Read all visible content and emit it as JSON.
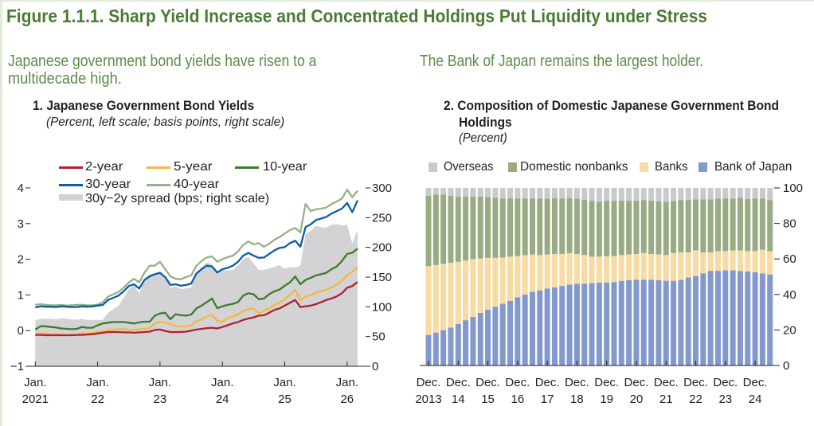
{
  "colors": {
    "title": "#4a7b33",
    "lead_text": "#5c8b48",
    "text": "#231f20",
    "frame": "#e2eadb"
  },
  "figure": {
    "title": "Figure 1.1.1. Sharp Yield Increase and Concentrated Holdings Put Liquidity under Stress",
    "left_lead_lines": [
      "Japanese government bond yields have risen to a",
      "multidecade high."
    ],
    "right_lead": "The Bank of Japan remains the largest holder."
  },
  "chart_data": [
    {
      "type": "line",
      "title": "1. Japanese Government Bond Yields",
      "subtitle": "(Percent, left scale; basis points, right scale)",
      "xlabel": "",
      "ylabel_left": "Percent",
      "ylabel_right": "Basis points",
      "legend": "top-left",
      "grid": false,
      "x": [
        "2021-01",
        "2021-02",
        "2021-03",
        "2021-04",
        "2021-05",
        "2021-06",
        "2021-07",
        "2021-08",
        "2021-09",
        "2021-10",
        "2021-11",
        "2021-12",
        "2022-01",
        "2022-02",
        "2022-03",
        "2022-04",
        "2022-05",
        "2022-06",
        "2022-07",
        "2022-08",
        "2022-09",
        "2022-10",
        "2022-11",
        "2022-12",
        "2023-01",
        "2023-02",
        "2023-03",
        "2023-04",
        "2023-05",
        "2023-06",
        "2023-07",
        "2023-08",
        "2023-09",
        "2023-10",
        "2023-11",
        "2023-12",
        "2024-01",
        "2024-02",
        "2024-03",
        "2024-04",
        "2024-05",
        "2024-06",
        "2024-07",
        "2024-08",
        "2024-09",
        "2024-10",
        "2024-11",
        "2024-12",
        "2025-01",
        "2025-02",
        "2025-03",
        "2025-04",
        "2025-05",
        "2025-06",
        "2025-07",
        "2025-08",
        "2025-09",
        "2025-10",
        "2025-11",
        "2025-12",
        "2026-01",
        "2026-02",
        "2026-03"
      ],
      "x_ticks": [
        {
          "index": 0,
          "label1": "Jan.",
          "label2": "2021"
        },
        {
          "index": 12,
          "label1": "Jan.",
          "label2": "22"
        },
        {
          "index": 24,
          "label1": "Jan.",
          "label2": "23"
        },
        {
          "index": 36,
          "label1": "Jan.",
          "label2": "24"
        },
        {
          "index": 48,
          "label1": "Jan.",
          "label2": "25"
        },
        {
          "index": 60,
          "label1": "Jan.",
          "label2": "26"
        }
      ],
      "ylim_left": [
        -1,
        4
      ],
      "yticks_left": [
        -1,
        0,
        1,
        2,
        3,
        4
      ],
      "ytick_labels_left": [
        "−1",
        "0",
        "1",
        "2",
        "3",
        "4"
      ],
      "ylim_right": [
        0,
        300
      ],
      "yticks_right": [
        0,
        50,
        100,
        150,
        200,
        250,
        300
      ],
      "ytick_labels_right": [
        "0",
        "50",
        "100",
        "150",
        "200",
        "250",
        "300"
      ],
      "series": [
        {
          "name": "2-year",
          "axis": "left",
          "kind": "line",
          "color": "#b3202e",
          "values": [
            -0.12,
            -0.12,
            -0.13,
            -0.13,
            -0.13,
            -0.13,
            -0.13,
            -0.13,
            -0.12,
            -0.12,
            -0.11,
            -0.1,
            -0.08,
            -0.06,
            -0.04,
            -0.04,
            -0.04,
            -0.05,
            -0.05,
            -0.06,
            -0.05,
            -0.04,
            -0.03,
            0.02,
            0.03,
            -0.01,
            -0.04,
            -0.04,
            -0.04,
            -0.03,
            0.0,
            0.03,
            0.05,
            0.07,
            0.08,
            0.06,
            0.1,
            0.15,
            0.2,
            0.24,
            0.3,
            0.34,
            0.37,
            0.42,
            0.43,
            0.5,
            0.58,
            0.62,
            0.7,
            0.78,
            0.86,
            0.66,
            0.68,
            0.7,
            0.74,
            0.8,
            0.86,
            0.9,
            0.96,
            1.05,
            1.2,
            1.25,
            1.36
          ]
        },
        {
          "name": "5-year",
          "axis": "left",
          "kind": "line",
          "color": "#f5b840",
          "values": [
            -0.09,
            -0.08,
            -0.08,
            -0.1,
            -0.1,
            -0.11,
            -0.12,
            -0.12,
            -0.11,
            -0.08,
            -0.08,
            -0.07,
            -0.04,
            -0.02,
            0.0,
            0.02,
            0.04,
            0.04,
            0.03,
            0.02,
            0.04,
            0.05,
            0.08,
            0.2,
            0.24,
            0.22,
            0.18,
            0.13,
            0.11,
            0.12,
            0.15,
            0.26,
            0.32,
            0.4,
            0.44,
            0.28,
            0.25,
            0.35,
            0.4,
            0.45,
            0.55,
            0.6,
            0.62,
            0.48,
            0.56,
            0.62,
            0.72,
            0.78,
            0.88,
            1.0,
            1.15,
            0.85,
            0.95,
            1.0,
            1.06,
            1.1,
            1.15,
            1.2,
            1.3,
            1.4,
            1.55,
            1.65,
            1.78
          ]
        },
        {
          "name": "10-year",
          "axis": "left",
          "kind": "line",
          "color": "#3f7a2e",
          "values": [
            0.03,
            0.12,
            0.12,
            0.1,
            0.09,
            0.06,
            0.05,
            0.04,
            0.05,
            0.1,
            0.08,
            0.08,
            0.15,
            0.2,
            0.22,
            0.24,
            0.24,
            0.24,
            0.22,
            0.2,
            0.23,
            0.25,
            0.25,
            0.42,
            0.48,
            0.5,
            0.32,
            0.46,
            0.43,
            0.42,
            0.45,
            0.62,
            0.7,
            0.8,
            0.9,
            0.63,
            0.68,
            0.72,
            0.75,
            0.8,
            0.98,
            1.05,
            1.02,
            0.88,
            0.9,
            1.02,
            1.1,
            1.15,
            1.26,
            1.35,
            1.52,
            1.3,
            1.42,
            1.48,
            1.55,
            1.58,
            1.62,
            1.72,
            1.8,
            1.95,
            2.15,
            2.18,
            2.3
          ]
        },
        {
          "name": "30-year",
          "axis": "left",
          "kind": "line",
          "color": "#0b5cab",
          "values": [
            0.65,
            0.68,
            0.67,
            0.67,
            0.66,
            0.68,
            0.67,
            0.66,
            0.66,
            0.68,
            0.67,
            0.68,
            0.7,
            0.72,
            0.86,
            0.92,
            0.98,
            1.1,
            1.25,
            1.3,
            1.18,
            1.42,
            1.52,
            1.58,
            1.62,
            1.5,
            1.28,
            1.3,
            1.26,
            1.28,
            1.32,
            1.6,
            1.72,
            1.82,
            1.8,
            1.63,
            1.72,
            1.76,
            1.82,
            1.93,
            2.1,
            2.18,
            2.1,
            2.04,
            2.05,
            2.15,
            2.25,
            2.32,
            2.34,
            2.45,
            2.52,
            2.35,
            2.9,
            2.98,
            3.1,
            3.14,
            3.19,
            3.28,
            3.35,
            3.42,
            3.58,
            3.32,
            3.65
          ]
        },
        {
          "name": "40-year",
          "axis": "left",
          "kind": "line",
          "color": "#97af86",
          "values": [
            0.72,
            0.74,
            0.72,
            0.71,
            0.71,
            0.72,
            0.7,
            0.71,
            0.72,
            0.72,
            0.71,
            0.71,
            0.73,
            0.8,
            0.95,
            1.02,
            1.08,
            1.2,
            1.35,
            1.45,
            1.35,
            1.62,
            1.82,
            1.82,
            1.93,
            1.72,
            1.52,
            1.45,
            1.44,
            1.5,
            1.55,
            1.82,
            1.95,
            2.05,
            2.08,
            1.93,
            2.0,
            2.06,
            2.1,
            2.22,
            2.4,
            2.5,
            2.42,
            2.45,
            2.35,
            2.43,
            2.55,
            2.62,
            2.72,
            2.82,
            2.88,
            2.75,
            3.55,
            3.35,
            3.4,
            3.42,
            3.45,
            3.55,
            3.62,
            3.7,
            3.95,
            3.74,
            3.92
          ]
        },
        {
          "name": "30y−2y spread (bps; right scale)",
          "axis": "right",
          "kind": "area",
          "color": "#d3d3d5",
          "values": [
            77,
            80,
            80,
            80,
            79,
            81,
            80,
            79,
            78,
            80,
            78,
            78,
            78,
            78,
            90,
            96,
            102,
            115,
            130,
            136,
            123,
            146,
            155,
            156,
            159,
            151,
            132,
            134,
            130,
            131,
            132,
            157,
            167,
            175,
            172,
            157,
            162,
            161,
            162,
            169,
            180,
            184,
            173,
            162,
            162,
            165,
            167,
            170,
            164,
            167,
            166,
            169,
            222,
            228,
            236,
            234,
            233,
            238,
            239,
            237,
            238,
            207,
            229
          ]
        }
      ]
    },
    {
      "type": "bar",
      "stacked": true,
      "title_lines": [
        "2. Composition of Domestic Japanese Government Bond",
        "Holdings"
      ],
      "subtitle": "(Percent)",
      "xlabel": "",
      "ylabel": "Percent",
      "legend": "top",
      "grid": false,
      "ylim": [
        0,
        100
      ],
      "yticks": [
        0,
        20,
        40,
        60,
        80,
        100
      ],
      "ytick_labels": [
        "0",
        "20",
        "40",
        "60",
        "80",
        "100"
      ],
      "categories": [
        "2013:Q4",
        "2014:Q1",
        "2014:Q2",
        "2014:Q3",
        "2014:Q4",
        "2015:Q1",
        "2015:Q2",
        "2015:Q3",
        "2015:Q4",
        "2016:Q1",
        "2016:Q2",
        "2016:Q3",
        "2016:Q4",
        "2017:Q1",
        "2017:Q2",
        "2017:Q3",
        "2017:Q4",
        "2018:Q1",
        "2018:Q2",
        "2018:Q3",
        "2018:Q4",
        "2019:Q1",
        "2019:Q2",
        "2019:Q3",
        "2019:Q4",
        "2020:Q1",
        "2020:Q2",
        "2020:Q3",
        "2020:Q4",
        "2021:Q1",
        "2021:Q2",
        "2021:Q3",
        "2021:Q4",
        "2022:Q1",
        "2022:Q2",
        "2022:Q3",
        "2022:Q4",
        "2023:Q1",
        "2023:Q2",
        "2023:Q3",
        "2023:Q4",
        "2024:Q1",
        "2024:Q2",
        "2024:Q3",
        "2024:Q4",
        "2025:Q1",
        "2025:Q2"
      ],
      "x_ticks": [
        {
          "index": 0,
          "label1": "Dec.",
          "label2": "2013"
        },
        {
          "index": 4,
          "label1": "Dec.",
          "label2": "14"
        },
        {
          "index": 8,
          "label1": "Dec.",
          "label2": "15"
        },
        {
          "index": 12,
          "label1": "Dec.",
          "label2": "16"
        },
        {
          "index": 16,
          "label1": "Dec.",
          "label2": "17"
        },
        {
          "index": 20,
          "label1": "Dec.",
          "label2": "18"
        },
        {
          "index": 24,
          "label1": "Dec.",
          "label2": "19"
        },
        {
          "index": 28,
          "label1": "Dec.",
          "label2": "20"
        },
        {
          "index": 32,
          "label1": "Dec.",
          "label2": "21"
        },
        {
          "index": 36,
          "label1": "Dec.",
          "label2": "22"
        },
        {
          "index": 40,
          "label1": "Dec.",
          "label2": "23"
        },
        {
          "index": 44,
          "label1": "Dec.",
          "label2": "24"
        }
      ],
      "series": [
        {
          "name": "Overseas",
          "color": "#c8cacd",
          "values": [
            4.4,
            3.7,
            3.7,
            4.4,
            4.9,
            4.9,
            4.9,
            4.9,
            5.2,
            5.6,
            5.9,
            5.9,
            5.9,
            5.9,
            5.9,
            6.0,
            6.0,
            5.8,
            6.0,
            5.8,
            6.0,
            6.7,
            7.2,
            7.8,
            7.4,
            7.4,
            7.2,
            7.2,
            7.2,
            6.8,
            7.2,
            7.6,
            7.8,
            7.4,
            6.8,
            6.8,
            6.4,
            6.4,
            6.5,
            5.9,
            5.9,
            6.0,
            5.6,
            6.2,
            5.9,
            6.0,
            6.8
          ]
        },
        {
          "name": "Domestic nonbanks",
          "color": "#9aab84",
          "values": [
            39.7,
            39.7,
            39.0,
            37.8,
            36.7,
            36.0,
            35.2,
            34.8,
            34.2,
            33.8,
            33.3,
            32.8,
            32.5,
            32.0,
            31.6,
            31.8,
            31.5,
            31.4,
            31.2,
            30.9,
            31.2,
            31.1,
            31.5,
            30.9,
            31.0,
            31.0,
            30.6,
            30.3,
            30.0,
            29.9,
            30.0,
            29.9,
            30.0,
            29.3,
            29.5,
            29.5,
            28.8,
            29.9,
            29.8,
            29.7,
            29.7,
            29.2,
            29.6,
            29.4,
            29.7,
            28.8,
            28.8
          ]
        },
        {
          "name": "Banks",
          "color": "#f8daa2",
          "values": [
            38.7,
            38.1,
            37.4,
            36.5,
            35.0,
            33.6,
            32.5,
            30.7,
            29.2,
            27.5,
            26.0,
            24.9,
            23.2,
            22.2,
            21.0,
            19.9,
            19.2,
            18.8,
            18.0,
            17.7,
            16.8,
            16.1,
            14.9,
            14.6,
            14.9,
            14.6,
            14.6,
            14.5,
            14.5,
            15.0,
            14.5,
            14.5,
            14.5,
            15.6,
            15.5,
            14.1,
            14.4,
            11.8,
            10.4,
            11.1,
            10.8,
            11.2,
            11.6,
            11.5,
            11.8,
            13.3,
            13.1
          ]
        },
        {
          "name": "Bank of Japan",
          "color": "#8398cc",
          "values": [
            17.2,
            18.5,
            19.9,
            21.3,
            23.4,
            25.5,
            27.4,
            29.6,
            31.4,
            33.1,
            34.8,
            36.4,
            38.4,
            39.9,
            41.5,
            42.3,
            43.3,
            44.0,
            44.8,
            45.6,
            46.0,
            46.1,
            46.4,
            46.7,
            46.7,
            47.0,
            47.6,
            48.0,
            48.3,
            48.3,
            48.3,
            48.0,
            47.7,
            47.7,
            48.2,
            49.6,
            50.4,
            51.9,
            53.3,
            53.3,
            53.6,
            53.6,
            53.2,
            52.9,
            52.6,
            51.9,
            51.3
          ]
        }
      ]
    }
  ]
}
